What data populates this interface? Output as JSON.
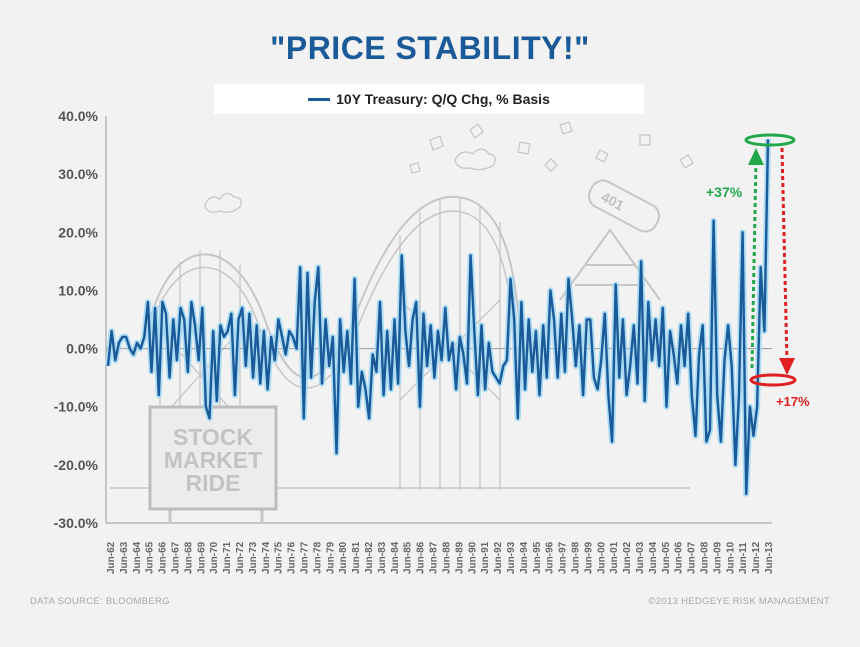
{
  "title": "\"PRICE STABILITY!\"",
  "legend": {
    "label": "10Y Treasury:  Q/Q Chg, % Basis"
  },
  "sign": {
    "line1": "STOCK",
    "line2": "MARKET",
    "line3": "RIDE"
  },
  "ride_label": "401",
  "annotations": {
    "up": "+37%",
    "down": "+17%"
  },
  "footer": {
    "source": "DATA SOURCE: BLOOMBERG",
    "copyright": "©2013 HEDGEYE RISK MANAGEMENT"
  },
  "colors": {
    "series": "#1b5a99",
    "glow": "#9fd8f5",
    "title": "#1b5a99",
    "up": "#22a84a",
    "down": "#e02020"
  },
  "chart_data": {
    "type": "line",
    "title": "\"PRICE STABILITY!\"",
    "xlabel": "",
    "ylabel": "",
    "ylim": [
      -30,
      40
    ],
    "yticks": [
      "40.0%",
      "30.0%",
      "20.0%",
      "10.0%",
      "0.0%",
      "-10.0%",
      "-20.0%",
      "-30.0%"
    ],
    "grid": false,
    "legend_position": "top-center",
    "x_ticks": [
      "Jun-62",
      "Jun-63",
      "Jun-64",
      "Jun-65",
      "Jun-66",
      "Jun-67",
      "Jun-68",
      "Jun-69",
      "Jun-70",
      "Jun-71",
      "Jun-72",
      "Jun-73",
      "Jun-74",
      "Jun-75",
      "Jun-76",
      "Jun-77",
      "Jun-78",
      "Jun-79",
      "Jun-80",
      "Jun-81",
      "Jun-82",
      "Jun-83",
      "Jun-84",
      "Jun-85",
      "Jun-86",
      "Jun-87",
      "Jun-88",
      "Jun-89",
      "Jun-90",
      "Jun-91",
      "Jun-92",
      "Jun-93",
      "Jun-94",
      "Jun-95",
      "Jun-96",
      "Jun-97",
      "Jun-98",
      "Jun-99",
      "Jun-00",
      "Jun-01",
      "Jun-02",
      "Jun-03",
      "Jun-04",
      "Jun-05",
      "Jun-06",
      "Jun-07",
      "Jun-08",
      "Jun-09",
      "Jun-10",
      "Jun-11",
      "Jun-12",
      "Jun-13"
    ],
    "series": [
      {
        "name": "10Y Treasury:  Q/Q Chg, % Basis",
        "values": [
          -3,
          3,
          -2,
          1,
          2,
          2,
          0,
          -1,
          1,
          0,
          2,
          8,
          -4,
          7,
          -8,
          8,
          6,
          -5,
          5,
          -2,
          7,
          5,
          -4,
          8,
          4,
          -2,
          7,
          -10,
          -12,
          3,
          -9,
          4,
          2,
          3,
          6,
          -8,
          5,
          7,
          -3,
          6,
          -5,
          4,
          -6,
          3,
          -7,
          2,
          -2,
          5,
          2,
          -1,
          3,
          2,
          0,
          14,
          -12,
          13,
          -5,
          8,
          14,
          -6,
          5,
          -3,
          2,
          -18,
          5,
          -4,
          3,
          -6,
          12,
          -10,
          -4,
          -7,
          -12,
          -1,
          -4,
          8,
          -8,
          3,
          -7,
          5,
          -6,
          16,
          3,
          -3,
          5,
          8,
          -10,
          6,
          -3,
          4,
          -5,
          3,
          -2,
          7,
          -2,
          1,
          -7,
          2,
          -1,
          -6,
          16,
          3,
          -8,
          4,
          -7,
          1,
          -4,
          -5,
          -6,
          -3,
          -2,
          12,
          5,
          -12,
          8,
          -7,
          5,
          -4,
          3,
          -8,
          4,
          -5,
          10,
          5,
          -5,
          6,
          -4,
          12,
          5,
          -3,
          4,
          -8,
          5,
          5,
          -5,
          -7,
          -2,
          6,
          -8,
          -16,
          11,
          -5,
          5,
          -8,
          -3,
          4,
          -6,
          15,
          -9,
          8,
          -2,
          5,
          -3,
          7,
          -10,
          3,
          -1,
          -6,
          4,
          -3,
          6,
          -8,
          -15,
          -1,
          4,
          -16,
          -14,
          22,
          -8,
          -16,
          -2,
          4,
          -3,
          -20,
          -8,
          20,
          -25,
          -10,
          -15,
          -10,
          14,
          3,
          36
        ]
      }
    ]
  }
}
